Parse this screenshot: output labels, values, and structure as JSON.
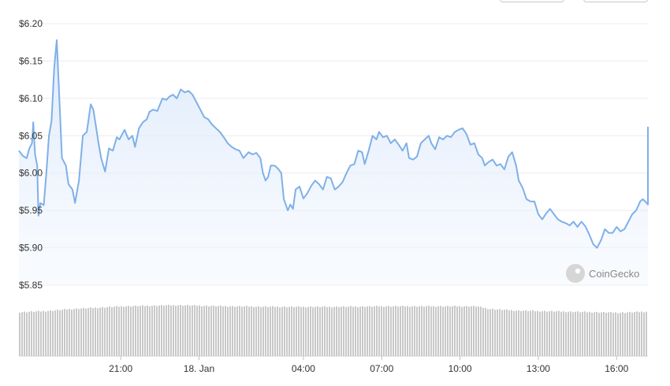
{
  "chart_data": {
    "type": "area",
    "title": "",
    "xlabel": "",
    "ylabel": "",
    "ylim": [
      5.835,
      6.205
    ],
    "y_ticks": [
      "$6.20",
      "$6.15",
      "$6.10",
      "$6.05",
      "$6.00",
      "$5.95",
      "$5.90",
      "$5.85"
    ],
    "y_tick_values": [
      6.2,
      6.15,
      6.1,
      6.05,
      6.0,
      5.95,
      5.9,
      5.85
    ],
    "x_ticks": [
      "21:00",
      "18. Jan",
      "04:00",
      "07:00",
      "10:00",
      "13:00",
      "16:00"
    ],
    "x_tick_hours": [
      3.9,
      6.9,
      10.9,
      13.9,
      16.9,
      19.9,
      22.9
    ],
    "x_range_hours": [
      0,
      24.1
    ],
    "grid": true,
    "line_color": "#7fb0e8",
    "fill_color": "#eef4fd",
    "volume_color": "#c8c8c8",
    "watermark": "CoinGecko",
    "series": [
      {
        "values": [
          [
            0.0,
            6.03
          ],
          [
            0.15,
            6.023
          ],
          [
            0.3,
            6.02
          ],
          [
            0.4,
            6.033
          ],
          [
            0.5,
            6.04
          ],
          [
            0.55,
            6.068
          ],
          [
            0.62,
            6.025
          ],
          [
            0.7,
            6.01
          ],
          [
            0.75,
            5.943
          ],
          [
            0.82,
            5.96
          ],
          [
            0.95,
            5.957
          ],
          [
            1.05,
            6.0
          ],
          [
            1.15,
            6.05
          ],
          [
            1.25,
            6.07
          ],
          [
            1.35,
            6.14
          ],
          [
            1.45,
            6.178
          ],
          [
            1.55,
            6.1
          ],
          [
            1.65,
            6.02
          ],
          [
            1.8,
            6.01
          ],
          [
            1.9,
            5.985
          ],
          [
            2.05,
            5.978
          ],
          [
            2.15,
            5.96
          ],
          [
            2.3,
            5.99
          ],
          [
            2.45,
            6.05
          ],
          [
            2.6,
            6.055
          ],
          [
            2.75,
            6.092
          ],
          [
            2.85,
            6.085
          ],
          [
            2.95,
            6.063
          ],
          [
            3.05,
            6.04
          ],
          [
            3.15,
            6.02
          ],
          [
            3.3,
            6.002
          ],
          [
            3.45,
            6.033
          ],
          [
            3.6,
            6.03
          ],
          [
            3.75,
            6.048
          ],
          [
            3.85,
            6.045
          ],
          [
            4.05,
            6.058
          ],
          [
            4.2,
            6.045
          ],
          [
            4.35,
            6.05
          ],
          [
            4.45,
            6.035
          ],
          [
            4.6,
            6.06
          ],
          [
            4.75,
            6.068
          ],
          [
            4.9,
            6.072
          ],
          [
            5.0,
            6.082
          ],
          [
            5.15,
            6.085
          ],
          [
            5.3,
            6.083
          ],
          [
            5.5,
            6.1
          ],
          [
            5.65,
            6.098
          ],
          [
            5.75,
            6.102
          ],
          [
            5.9,
            6.105
          ],
          [
            6.05,
            6.1
          ],
          [
            6.2,
            6.112
          ],
          [
            6.35,
            6.108
          ],
          [
            6.5,
            6.11
          ],
          [
            6.65,
            6.105
          ],
          [
            6.8,
            6.095
          ],
          [
            6.95,
            6.085
          ],
          [
            7.1,
            6.075
          ],
          [
            7.25,
            6.072
          ],
          [
            7.4,
            6.065
          ],
          [
            7.55,
            6.06
          ],
          [
            7.7,
            6.055
          ],
          [
            7.85,
            6.048
          ],
          [
            8.0,
            6.04
          ],
          [
            8.15,
            6.035
          ],
          [
            8.3,
            6.032
          ],
          [
            8.45,
            6.03
          ],
          [
            8.6,
            6.02
          ],
          [
            8.8,
            6.028
          ],
          [
            8.95,
            6.025
          ],
          [
            9.1,
            6.027
          ],
          [
            9.25,
            6.02
          ],
          [
            9.35,
            6.0
          ],
          [
            9.45,
            5.99
          ],
          [
            9.55,
            5.995
          ],
          [
            9.65,
            6.01
          ],
          [
            9.8,
            6.01
          ],
          [
            9.95,
            6.005
          ],
          [
            10.05,
            6.0
          ],
          [
            10.15,
            5.965
          ],
          [
            10.3,
            5.95
          ],
          [
            10.4,
            5.958
          ],
          [
            10.5,
            5.952
          ],
          [
            10.6,
            5.978
          ],
          [
            10.75,
            5.982
          ],
          [
            10.9,
            5.966
          ],
          [
            11.05,
            5.973
          ],
          [
            11.2,
            5.983
          ],
          [
            11.35,
            5.99
          ],
          [
            11.5,
            5.985
          ],
          [
            11.65,
            5.978
          ],
          [
            11.8,
            5.995
          ],
          [
            11.95,
            5.993
          ],
          [
            12.1,
            5.978
          ],
          [
            12.25,
            5.982
          ],
          [
            12.4,
            5.988
          ],
          [
            12.55,
            6.0
          ],
          [
            12.7,
            6.01
          ],
          [
            12.85,
            6.012
          ],
          [
            13.0,
            6.03
          ],
          [
            13.15,
            6.028
          ],
          [
            13.25,
            6.012
          ],
          [
            13.4,
            6.03
          ],
          [
            13.55,
            6.05
          ],
          [
            13.7,
            6.045
          ],
          [
            13.8,
            6.055
          ],
          [
            13.95,
            6.048
          ],
          [
            14.1,
            6.05
          ],
          [
            14.25,
            6.04
          ],
          [
            14.4,
            6.045
          ],
          [
            14.55,
            6.038
          ],
          [
            14.7,
            6.03
          ],
          [
            14.85,
            6.04
          ],
          [
            14.95,
            6.02
          ],
          [
            15.1,
            6.018
          ],
          [
            15.25,
            6.022
          ],
          [
            15.4,
            6.04
          ],
          [
            15.55,
            6.045
          ],
          [
            15.7,
            6.05
          ],
          [
            15.8,
            6.04
          ],
          [
            15.95,
            6.032
          ],
          [
            16.1,
            6.048
          ],
          [
            16.25,
            6.045
          ],
          [
            16.4,
            6.05
          ],
          [
            16.55,
            6.048
          ],
          [
            16.7,
            6.055
          ],
          [
            16.85,
            6.058
          ],
          [
            17.0,
            6.06
          ],
          [
            17.15,
            6.052
          ],
          [
            17.3,
            6.038
          ],
          [
            17.45,
            6.04
          ],
          [
            17.6,
            6.025
          ],
          [
            17.75,
            6.02
          ],
          [
            17.85,
            6.01
          ],
          [
            18.0,
            6.015
          ],
          [
            18.15,
            6.018
          ],
          [
            18.3,
            6.01
          ],
          [
            18.45,
            6.012
          ],
          [
            18.6,
            6.005
          ],
          [
            18.75,
            6.022
          ],
          [
            18.9,
            6.028
          ],
          [
            19.05,
            6.01
          ],
          [
            19.15,
            5.99
          ],
          [
            19.3,
            5.98
          ],
          [
            19.45,
            5.965
          ],
          [
            19.6,
            5.962
          ],
          [
            19.75,
            5.962
          ],
          [
            19.9,
            5.945
          ],
          [
            20.05,
            5.938
          ],
          [
            20.2,
            5.946
          ],
          [
            20.35,
            5.952
          ],
          [
            20.5,
            5.945
          ],
          [
            20.65,
            5.938
          ],
          [
            20.8,
            5.935
          ],
          [
            20.95,
            5.933
          ],
          [
            21.1,
            5.93
          ],
          [
            21.25,
            5.935
          ],
          [
            21.4,
            5.928
          ],
          [
            21.55,
            5.935
          ],
          [
            21.7,
            5.929
          ],
          [
            21.85,
            5.918
          ],
          [
            22.0,
            5.905
          ],
          [
            22.15,
            5.9
          ],
          [
            22.3,
            5.91
          ],
          [
            22.45,
            5.925
          ],
          [
            22.6,
            5.92
          ],
          [
            22.75,
            5.92
          ],
          [
            22.9,
            5.928
          ],
          [
            23.05,
            5.922
          ],
          [
            23.2,
            5.925
          ],
          [
            23.35,
            5.935
          ],
          [
            23.5,
            5.945
          ],
          [
            23.65,
            5.95
          ],
          [
            23.8,
            5.962
          ],
          [
            23.9,
            5.965
          ],
          [
            24.0,
            5.962
          ],
          [
            24.1,
            5.958
          ],
          [
            24.2,
            5.96
          ],
          [
            24.3,
            5.985
          ],
          [
            24.4,
            5.988
          ],
          [
            24.5,
            6.062
          ]
        ]
      }
    ],
    "volume_profile": [
      [
        0.0,
        0.82
      ],
      [
        1.0,
        0.84
      ],
      [
        2.0,
        0.88
      ],
      [
        4.0,
        0.93
      ],
      [
        6.0,
        0.95
      ],
      [
        8.0,
        0.93
      ],
      [
        10.0,
        0.92
      ],
      [
        12.0,
        0.92
      ],
      [
        14.0,
        0.93
      ],
      [
        16.0,
        0.93
      ],
      [
        17.5,
        0.93
      ],
      [
        18.0,
        0.88
      ],
      [
        19.0,
        0.85
      ],
      [
        21.0,
        0.83
      ],
      [
        22.0,
        0.82
      ],
      [
        23.0,
        0.81
      ],
      [
        24.5,
        0.84
      ]
    ]
  }
}
